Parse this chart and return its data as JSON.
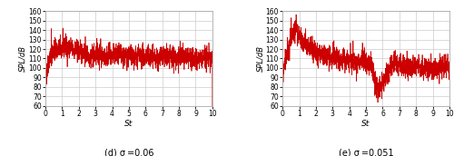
{
  "xlim": [
    0,
    10
  ],
  "ylim": [
    60,
    160
  ],
  "yticks": [
    60,
    70,
    80,
    90,
    100,
    110,
    120,
    130,
    140,
    150,
    160
  ],
  "xticks": [
    0,
    1,
    2,
    3,
    4,
    5,
    6,
    7,
    8,
    9,
    10
  ],
  "xlabel": "St",
  "ylabel": "SPL/dB",
  "line_color": "#cc0000",
  "line_width": 0.5,
  "label_d": "(d) σ =0.06",
  "label_e": "(e) σ =0.051",
  "grid_color": "#cccccc",
  "background_color": "#ffffff",
  "seed_d": 42,
  "seed_e": 99,
  "n_points": 2000
}
